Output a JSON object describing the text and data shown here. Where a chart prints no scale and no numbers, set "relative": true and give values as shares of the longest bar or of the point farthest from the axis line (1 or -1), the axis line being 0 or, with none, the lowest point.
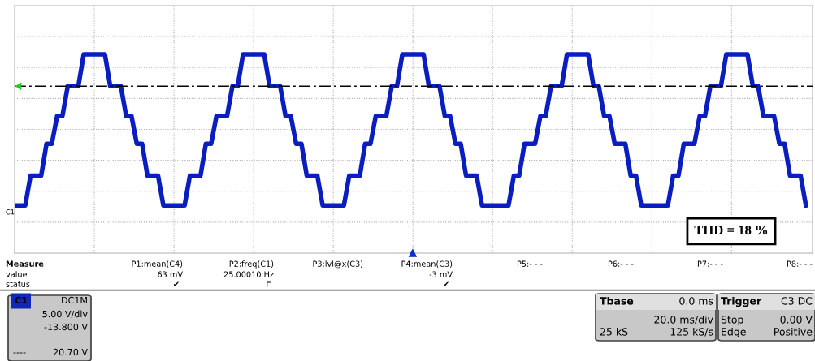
{
  "chart_data": {
    "type": "line",
    "relative": true,
    "grid": true,
    "categories": [
      null,
      null,
      null,
      null,
      null,
      null,
      null,
      null,
      null,
      null,
      null,
      null,
      null,
      null,
      null,
      null,
      null,
      null,
      null,
      null,
      null,
      null,
      null,
      null,
      null,
      null,
      null,
      null,
      null,
      null,
      null,
      null,
      null,
      null,
      null,
      null,
      null,
      null,
      null,
      null,
      null,
      null,
      null,
      null,
      null,
      null,
      null,
      null,
      null,
      null,
      null,
      null,
      null,
      null,
      null,
      null,
      null,
      null,
      null,
      null,
      null,
      null,
      null,
      null,
      null,
      null,
      null,
      null,
      null,
      null,
      null,
      null,
      null,
      null,
      null,
      null,
      null,
      null,
      null,
      null,
      null,
      null,
      null,
      null,
      null,
      null,
      null,
      null,
      null,
      null,
      null,
      null,
      null,
      null,
      null,
      null,
      null,
      null,
      null,
      null,
      null,
      null,
      null,
      null,
      null,
      null,
      null,
      null,
      null,
      null,
      null,
      null,
      null,
      null,
      null,
      null,
      null,
      null,
      null,
      null,
      null,
      null,
      null,
      null,
      null,
      null,
      null,
      null,
      null,
      null,
      null,
      null,
      null,
      null,
      null,
      null,
      null,
      null,
      null,
      null,
      null,
      null,
      null,
      null,
      null,
      null,
      null,
      null,
      null,
      null
    ],
    "series": [
      {
        "color": "#0a1ec0",
        "values": [
          0.24,
          0.24,
          0.24,
          0.39,
          0.39,
          0.39,
          0.55,
          0.55,
          0.69,
          0.69,
          0.84,
          0.84,
          0.84,
          1,
          1,
          1,
          1,
          1,
          0.84,
          0.84,
          0.84,
          0.69,
          0.69,
          0.55,
          0.55,
          0.39,
          0.39,
          0.39,
          0.24,
          0.24,
          0.24,
          0.24,
          0.24,
          0.39,
          0.39,
          0.39,
          0.55,
          0.55,
          0.69,
          0.69,
          0.69,
          0.84,
          0.84,
          1,
          1,
          1,
          1,
          1,
          0.84,
          0.84,
          0.84,
          0.69,
          0.69,
          0.55,
          0.55,
          0.39,
          0.39,
          0.39,
          0.24,
          0.24,
          0.24,
          0.24,
          0.24,
          0.39,
          0.39,
          0.39,
          0.55,
          0.55,
          0.69,
          0.69,
          0.69,
          0.84,
          0.84,
          1,
          1,
          1,
          1,
          1,
          0.84,
          0.84,
          0.84,
          0.69,
          0.69,
          0.55,
          0.55,
          0.39,
          0.39,
          0.39,
          0.24,
          0.24,
          0.24,
          0.24,
          0.24,
          0.24,
          0.39,
          0.39,
          0.55,
          0.55,
          0.55,
          0.69,
          0.69,
          0.84,
          0.84,
          0.84,
          1,
          1,
          1,
          1,
          1,
          0.84,
          0.84,
          0.69,
          0.69,
          0.55,
          0.55,
          0.55,
          0.39,
          0.39,
          0.24,
          0.24,
          0.24,
          0.24,
          0.24,
          0.24,
          0.39,
          0.39,
          0.55,
          0.55,
          0.55,
          0.69,
          0.69,
          0.84,
          0.84,
          0.84,
          1,
          1,
          1,
          1,
          1,
          0.84,
          0.84,
          0.69,
          0.69,
          0.69,
          0.55,
          0.55,
          0.39,
          0.39,
          0.39,
          0.24
        ]
      }
    ],
    "ref_lines": [
      {
        "axis": "y",
        "value": 0.84,
        "color": "#000000",
        "line_style": "dashed"
      }
    ],
    "annotations": [
      "C1",
      "THD = 18 %",
      "Measure",
      "value",
      "status",
      "P1:mean(C4)",
      "63 mV",
      "✔",
      "P2:freq(C1)",
      "25.00010 Hz",
      "⊓",
      "P3:lvl@x(C3)",
      "P4:mean(C3)",
      "-3 mV",
      "✔",
      "P5:- - -",
      "P6:- - -",
      "P7:- - -",
      "P8:- - -",
      "C1",
      "DC1M",
      "5.00 V/div",
      "-13.800 V",
      "----",
      "20.70 V",
      "Tbase",
      "0.0 ms",
      "20.0 ms/div",
      "25 kS",
      "125 kS/s",
      "Trigger",
      "C3 DC",
      "Stop",
      "0.00 V",
      "Edge",
      "Positive"
    ]
  }
}
